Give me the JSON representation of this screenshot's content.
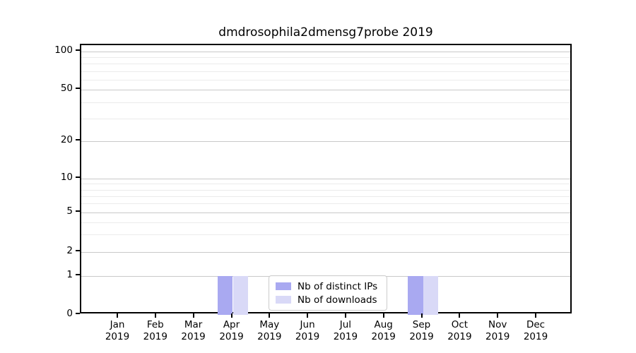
{
  "figure": {
    "title": "dmdrosophila2dmensg7probe 2019"
  },
  "chart_data": {
    "type": "bar",
    "title": "dmdrosophila2dmensg7probe 2019",
    "x_axis": {
      "categories": [
        "Jan",
        "Feb",
        "Mar",
        "Apr",
        "May",
        "Jun",
        "Jul",
        "Aug",
        "Sep",
        "Oct",
        "Nov",
        "Dec"
      ],
      "year_label": "2019"
    },
    "y_axis": {
      "scale": "linear below 1, logarithmic above 1",
      "ticks": [
        0,
        1,
        2,
        5,
        10,
        20,
        50,
        100
      ],
      "minor_gridline_values": [
        3,
        4,
        6,
        7,
        8,
        9,
        30,
        40,
        60,
        70,
        80,
        90
      ],
      "range": [
        0,
        112
      ]
    },
    "series": [
      {
        "name": "Nb of distinct IPs",
        "color": "#a9a9f1",
        "values": [
          0,
          0,
          0,
          1,
          0,
          0,
          0,
          0,
          1,
          0,
          0,
          0
        ]
      },
      {
        "name": "Nb of downloads",
        "color": "#d9d9f7",
        "values": [
          0,
          0,
          0,
          1,
          0,
          0,
          0,
          0,
          1,
          0,
          0,
          0
        ]
      }
    ],
    "legend": {
      "entries": [
        "Nb of distinct IPs",
        "Nb of downloads"
      ],
      "position": "lower center of plot"
    },
    "grid": {
      "horizontal": true,
      "major_color": "#c9c9c9",
      "minor_color": "#ebebeb"
    },
    "colors": {
      "spine": "#000000",
      "background": "#ffffff",
      "text": "#000000"
    }
  }
}
